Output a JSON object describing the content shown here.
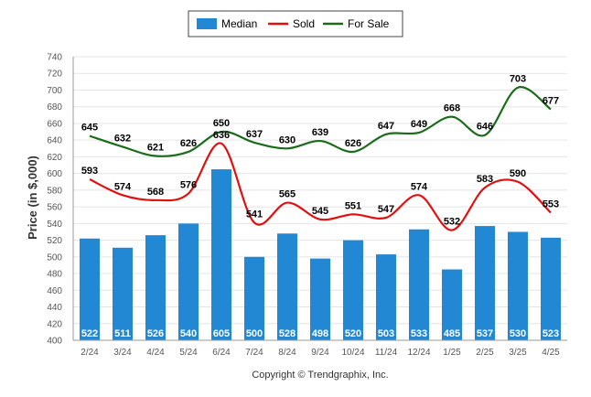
{
  "chart_data": {
    "type": "bar",
    "title": "",
    "xlabel": "",
    "ylabel": "Price (in $,000)",
    "ylim": [
      400,
      740
    ],
    "ytick_step": 20,
    "grid": true,
    "legend_position": "top-center",
    "categories": [
      "2/24",
      "3/24",
      "4/24",
      "5/24",
      "6/24",
      "7/24",
      "8/24",
      "9/24",
      "10/24",
      "11/24",
      "12/24",
      "1/25",
      "2/25",
      "3/25",
      "4/25"
    ],
    "series": [
      {
        "name": "Median",
        "type": "bar",
        "color": "#2288d3",
        "values": [
          522,
          511,
          526,
          540,
          605,
          500,
          528,
          498,
          520,
          503,
          533,
          485,
          537,
          530,
          523
        ]
      },
      {
        "name": "Sold",
        "type": "line",
        "color": "#e01010",
        "values": [
          593,
          574,
          568,
          576,
          636,
          541,
          565,
          545,
          551,
          547,
          574,
          532,
          583,
          590,
          553
        ]
      },
      {
        "name": "For Sale",
        "type": "line",
        "color": "#1a6b1a",
        "values": [
          645,
          632,
          621,
          626,
          650,
          637,
          630,
          639,
          626,
          647,
          649,
          668,
          646,
          703,
          677
        ]
      }
    ],
    "credit": "Copyright © Trendgraphix, Inc."
  }
}
